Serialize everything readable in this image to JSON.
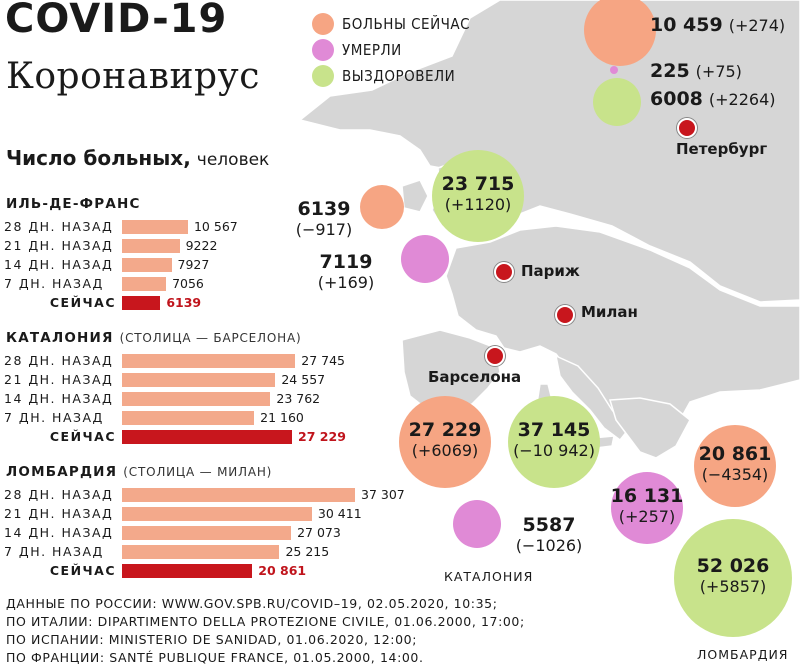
{
  "header": {
    "title": "COVID-19",
    "subtitle": "Коронавирус"
  },
  "colors": {
    "sick": "#f6a583",
    "dead": "#e08ad6",
    "recovered": "#c8e38b",
    "bar": "#f3a98b",
    "bar_now": "#c8161d",
    "city": "#c8161d",
    "land": "#d6d6d6"
  },
  "legend": {
    "sick": "БОЛЬНЫ СЕЙЧАС",
    "dead": "УМЕРЛИ",
    "recovered": "ВЫЗДОРОВЕЛИ"
  },
  "chart_heading": {
    "bold": "Число больных,",
    "regular": "человек"
  },
  "chart_data": {
    "type": "bar",
    "categories": [
      "28 ДН. НАЗАД",
      "21 ДН. НАЗАД",
      "14 ДН. НАЗАД",
      "7 ДН. НАЗАД",
      "СЕЙЧАС"
    ],
    "regions": [
      {
        "name": "ИЛЬ-ДЕ-ФРАНС",
        "subtitle": "",
        "values": [
          10567,
          9222,
          7927,
          7056,
          6139
        ],
        "labels": [
          "10 567",
          "9222",
          "7927",
          "7056",
          "6139"
        ]
      },
      {
        "name": "КАТАЛОНИЯ",
        "subtitle": "(СТОЛИЦА — БАРСЕЛОНА)",
        "values": [
          27745,
          24557,
          23762,
          21160,
          27229
        ],
        "labels": [
          "27 745",
          "24 557",
          "23 762",
          "21 160",
          "27 229"
        ]
      },
      {
        "name": "ЛОМБАРДИЯ",
        "subtitle": "(СТОЛИЦА — МИЛАН)",
        "values": [
          37307,
          30411,
          27073,
          25215,
          20861
        ],
        "labels": [
          "37 307",
          "30 411",
          "27 073",
          "25 215",
          "20 861"
        ]
      }
    ],
    "bubbles": [
      {
        "kind": "sick",
        "value": "10 459",
        "delta": "(+274)",
        "region": "Петербург"
      },
      {
        "kind": "dead",
        "value": "225",
        "delta": "(+75)",
        "region": "Петербург"
      },
      {
        "kind": "recovered",
        "value": "6008",
        "delta": "(+2264)",
        "region": "Петербург"
      },
      {
        "kind": "sick",
        "value": "6139",
        "delta": "(−917)",
        "region": "Иль-де-Франс"
      },
      {
        "kind": "recovered",
        "value": "23 715",
        "delta": "(+1120)",
        "region": "Иль-де-Франс"
      },
      {
        "kind": "dead",
        "value": "7119",
        "delta": "(+169)",
        "region": "Иль-де-Франс"
      },
      {
        "kind": "sick",
        "value": "27 229",
        "delta": "(+6069)",
        "region": "Каталония"
      },
      {
        "kind": "recovered",
        "value": "37 145",
        "delta": "(−10 942)",
        "region": "Каталония"
      },
      {
        "kind": "dead",
        "value": "5587",
        "delta": "(−1026)",
        "region": "Каталония"
      },
      {
        "kind": "sick",
        "value": "20 861",
        "delta": "(−4354)",
        "region": "Ломбардия"
      },
      {
        "kind": "dead",
        "value": "16 131",
        "delta": "(+257)",
        "region": "Ломбардия"
      },
      {
        "kind": "recovered",
        "value": "52 026",
        "delta": "(+5857)",
        "region": "Ломбардия"
      }
    ]
  },
  "cities": {
    "peterburg": "Петербург",
    "paris": "Париж",
    "milan": "Милан",
    "barcelona": "Барселона"
  },
  "region_captions": {
    "catalonia": "КАТАЛОНИЯ",
    "lombardy": "ЛОМБАРДИЯ"
  },
  "sources": [
    "ДАННЫЕ ПО РОССИИ: WWW.GOV.SPB.RU/COVID–19, 02.05.2020, 10:35;",
    "ПО ИТАЛИИ: DIPARTIMENTO DELLA PROTEZIONE CIVILE, 01.06.2000, 17:00;",
    "ПО ИСПАНИИ: MINISTERIO DE SANIDAD, 01.06.2020, 12:00;",
    "ПО ФРАНЦИИ: SANTÉ PUBLIQUE FRANCE, 01.05.2000, 14:00."
  ]
}
